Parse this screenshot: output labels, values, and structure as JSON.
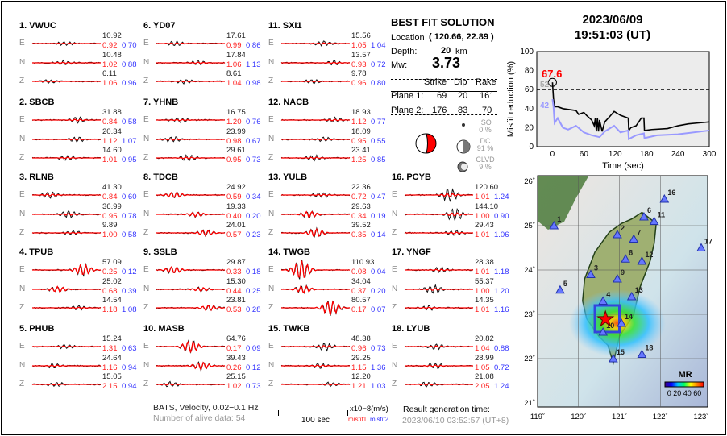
{
  "stations": [
    {
      "label": "1.  VWUC",
      "comps": [
        {
          "c": "E",
          "amp": "10.92",
          "m1": "0.92",
          "m2": "0.70"
        },
        {
          "c": "N",
          "amp": "10.48",
          "m1": "1.02",
          "m2": "0.88"
        },
        {
          "c": "Z",
          "amp": "6.11",
          "m1": "1.06",
          "m2": "0.96"
        }
      ]
    },
    {
      "label": "2.  SBCB",
      "comps": [
        {
          "c": "E",
          "amp": "31.88",
          "m1": "0.84",
          "m2": "0.58"
        },
        {
          "c": "N",
          "amp": "20.34",
          "m1": "1.12",
          "m2": "1.07"
        },
        {
          "c": "Z",
          "amp": "14.60",
          "m1": "1.01",
          "m2": "0.95"
        }
      ]
    },
    {
      "label": "3.  RLNB",
      "comps": [
        {
          "c": "E",
          "amp": "41.30",
          "m1": "0.84",
          "m2": "0.60"
        },
        {
          "c": "N",
          "amp": "36.99",
          "m1": "0.95",
          "m2": "0.78"
        },
        {
          "c": "Z",
          "amp": "9.89",
          "m1": "1.00",
          "m2": "0.58"
        }
      ]
    },
    {
      "label": "4.  TPUB",
      "comps": [
        {
          "c": "E",
          "amp": "57.09",
          "m1": "0.25",
          "m2": "0.12"
        },
        {
          "c": "N",
          "amp": "25.02",
          "m1": "0.68",
          "m2": "0.39"
        },
        {
          "c": "Z",
          "amp": "14.54",
          "m1": "1.18",
          "m2": "1.08"
        }
      ]
    },
    {
      "label": "5.  PHUB",
      "comps": [
        {
          "c": "E",
          "amp": "15.24",
          "m1": "1.31",
          "m2": "0.63"
        },
        {
          "c": "N",
          "amp": "24.64",
          "m1": "1.16",
          "m2": "0.94"
        },
        {
          "c": "Z",
          "amp": "15.05",
          "m1": "2.15",
          "m2": "0.94"
        }
      ]
    },
    {
      "label": "6.  YD07",
      "comps": [
        {
          "c": "E",
          "amp": "17.61",
          "m1": "0.99",
          "m2": "0.86"
        },
        {
          "c": "N",
          "amp": "17.84",
          "m1": "1.06",
          "m2": "1.13"
        },
        {
          "c": "Z",
          "amp": "8.61",
          "m1": "1.04",
          "m2": "0.98"
        }
      ]
    },
    {
      "label": "7.  YHNB",
      "comps": [
        {
          "c": "E",
          "amp": "16.75",
          "m1": "1.20",
          "m2": "0.76"
        },
        {
          "c": "N",
          "amp": "23.99",
          "m1": "0.98",
          "m2": "0.67"
        },
        {
          "c": "Z",
          "amp": "29.61",
          "m1": "0.95",
          "m2": "0.73"
        }
      ]
    },
    {
      "label": "8.  TDCB",
      "comps": [
        {
          "c": "E",
          "amp": "24.92",
          "m1": "0.59",
          "m2": "0.34"
        },
        {
          "c": "N",
          "amp": "19.33",
          "m1": "0.40",
          "m2": "0.20"
        },
        {
          "c": "Z",
          "amp": "24.01",
          "m1": "0.57",
          "m2": "0.23"
        }
      ]
    },
    {
      "label": "9.  SSLB",
      "comps": [
        {
          "c": "E",
          "amp": "29.87",
          "m1": "0.33",
          "m2": "0.18"
        },
        {
          "c": "N",
          "amp": "15.30",
          "m1": "0.44",
          "m2": "0.25"
        },
        {
          "c": "Z",
          "amp": "23.81",
          "m1": "0.53",
          "m2": "0.28"
        }
      ]
    },
    {
      "label": "10. MASB",
      "comps": [
        {
          "c": "E",
          "amp": "64.76",
          "m1": "0.17",
          "m2": "0.09"
        },
        {
          "c": "N",
          "amp": "39.43",
          "m1": "0.26",
          "m2": "0.12"
        },
        {
          "c": "Z",
          "amp": "25.15",
          "m1": "1.02",
          "m2": "0.73"
        }
      ]
    },
    {
      "label": "11. SXI1",
      "comps": [
        {
          "c": "E",
          "amp": "15.56",
          "m1": "1.05",
          "m2": "1.04"
        },
        {
          "c": "N",
          "amp": "13.57",
          "m1": "0.93",
          "m2": "0.72"
        },
        {
          "c": "Z",
          "amp": "9.78",
          "m1": "0.96",
          "m2": "0.80"
        }
      ]
    },
    {
      "label": "12. NACB",
      "comps": [
        {
          "c": "E",
          "amp": "18.93",
          "m1": "1.12",
          "m2": "0.77"
        },
        {
          "c": "N",
          "amp": "18.09",
          "m1": "0.95",
          "m2": "0.55"
        },
        {
          "c": "Z",
          "amp": "23.41",
          "m1": "1.25",
          "m2": "0.85"
        }
      ]
    },
    {
      "label": "13. YULB",
      "comps": [
        {
          "c": "E",
          "amp": "22.36",
          "m1": "0.72",
          "m2": "0.47"
        },
        {
          "c": "N",
          "amp": "29.63",
          "m1": "0.34",
          "m2": "0.19"
        },
        {
          "c": "Z",
          "amp": "39.52",
          "m1": "0.35",
          "m2": "0.14"
        }
      ]
    },
    {
      "label": "14. TWGB",
      "comps": [
        {
          "c": "E",
          "amp": "110.93",
          "m1": "0.08",
          "m2": "0.04"
        },
        {
          "c": "N",
          "amp": "34.04",
          "m1": "0.37",
          "m2": "0.20"
        },
        {
          "c": "Z",
          "amp": "80.57",
          "m1": "0.17",
          "m2": "0.07"
        }
      ]
    },
    {
      "label": "15. TWKB",
      "comps": [
        {
          "c": "E",
          "amp": "48.38",
          "m1": "0.96",
          "m2": "0.73"
        },
        {
          "c": "N",
          "amp": "29.25",
          "m1": "1.15",
          "m2": "1.36"
        },
        {
          "c": "Z",
          "amp": "12.20",
          "m1": "1.21",
          "m2": "1.03"
        }
      ]
    },
    {
      "label": "16. PCYB",
      "comps": [
        {
          "c": "E",
          "amp": "120.60",
          "m1": "1.01",
          "m2": "1.24"
        },
        {
          "c": "N",
          "amp": "144.10",
          "m1": "1.00",
          "m2": "0.90"
        },
        {
          "c": "Z",
          "amp": "29.43",
          "m1": "1.01",
          "m2": "1.06"
        }
      ]
    },
    {
      "label": "17. YNGF",
      "comps": [
        {
          "c": "E",
          "amp": "28.38",
          "m1": "1.01",
          "m2": "1.18"
        },
        {
          "c": "N",
          "amp": "55.37",
          "m1": "1.00",
          "m2": "1.20"
        },
        {
          "c": "Z",
          "amp": "14.35",
          "m1": "1.01",
          "m2": "1.16"
        }
      ]
    },
    {
      "label": "18. LYUB",
      "comps": [
        {
          "c": "E",
          "amp": "20.82",
          "m1": "1.04",
          "m2": "0.88"
        },
        {
          "c": "N",
          "amp": "28.99",
          "m1": "1.05",
          "m2": "0.72"
        },
        {
          "c": "Z",
          "amp": "21.08",
          "m1": "2.05",
          "m2": "1.24"
        }
      ]
    }
  ],
  "footer": {
    "network": "BATS, Velocity, 0.02−0.1 Hz",
    "alive": "Number of alive data: 54",
    "scale": "100 sec",
    "units": "x10−8(m/s)",
    "misfit1": "misfit1",
    "misfit2": "misfit2",
    "gen_label": "Result generation time:",
    "gen_time": "2023/06/10 03:52:57 (UT+8)"
  },
  "solution": {
    "title": "BEST FIT SOLUTION",
    "location_label": "Location",
    "location": "( 120.66,  22.89 )",
    "depth_label": "Depth:",
    "depth": "20",
    "depth_unit": "km",
    "mw_label": "Mw:",
    "mw": "3.73",
    "headers": [
      "Strike",
      "Dip",
      "Rake"
    ],
    "planes": [
      {
        "label": "Plane 1:",
        "strike": "69",
        "dip": "20",
        "rake": "161"
      },
      {
        "label": "Plane 2:",
        "strike": "176",
        "dip": "83",
        "rake": "70"
      }
    ],
    "iso_label": "ISO",
    "iso": "0 %",
    "dc_label": "DC",
    "dc": "91 %",
    "clvd_label": "CLVD",
    "clvd": "9 %"
  },
  "event": {
    "date": "2023/06/09",
    "time": "19:51:03  (UT)"
  },
  "chart_data": {
    "type": "line",
    "xlabel": "Time (sec)",
    "ylabel": "Misfit reduction (%)",
    "xlim": [
      -30,
      300
    ],
    "ylim": [
      0,
      100
    ],
    "xticks": [
      "0",
      "60",
      "120",
      "180",
      "240",
      "300"
    ],
    "yticks": [
      "0",
      "20",
      "40",
      "60",
      "80",
      "100"
    ],
    "threshold": 60,
    "best_label": "67.6",
    "label2": "52",
    "label3": "42",
    "series": [
      {
        "color": "#000000",
        "x": [
          0,
          2,
          4,
          10,
          20,
          45,
          50,
          60,
          65,
          75,
          80,
          82,
          84,
          86,
          88,
          90,
          95,
          100,
          110,
          118,
          130,
          145,
          146,
          150,
          160,
          170,
          175,
          176,
          190,
          220,
          240,
          260,
          280,
          300
        ],
        "y": [
          67.6,
          50,
          42,
          42,
          40,
          38,
          34,
          36,
          33,
          28,
          22,
          30,
          16,
          30,
          16,
          28,
          16,
          26,
          32,
          37,
          33,
          30,
          17,
          20,
          22,
          30,
          30,
          17,
          18,
          19,
          22,
          24,
          25,
          26
        ]
      },
      {
        "color": "#9999ff",
        "x": [
          0,
          2,
          4,
          10,
          20,
          30,
          45,
          60,
          75,
          90,
          100,
          118,
          130,
          145,
          146,
          160,
          175,
          176,
          200,
          240,
          300
        ],
        "y": [
          50,
          42,
          25,
          30,
          20,
          18,
          22,
          15,
          12,
          10,
          16,
          22,
          15,
          17,
          8,
          12,
          14,
          9,
          12,
          13,
          17
        ]
      }
    ]
  },
  "map": {
    "lon_ticks": [
      "119˚",
      "120˚",
      "121˚",
      "122˚",
      "123˚"
    ],
    "lat_ticks": [
      "21˚",
      "22˚",
      "23˚",
      "24˚",
      "25˚",
      "26˚"
    ],
    "colorbar_title": "MR",
    "colorbar_ticks": "0 20 40 60",
    "epicenter": {
      "lon": 120.66,
      "lat": 22.89
    },
    "stations": [
      {
        "n": "1",
        "lon": 119.4,
        "lat": 25.0
      },
      {
        "n": "2",
        "lon": 120.95,
        "lat": 24.8
      },
      {
        "n": "3",
        "lon": 120.3,
        "lat": 23.9
      },
      {
        "n": "4",
        "lon": 120.6,
        "lat": 23.3
      },
      {
        "n": "5",
        "lon": 119.55,
        "lat": 23.55
      },
      {
        "n": "6",
        "lon": 121.6,
        "lat": 25.2
      },
      {
        "n": "7",
        "lon": 121.35,
        "lat": 24.7
      },
      {
        "n": "8",
        "lon": 121.15,
        "lat": 24.25
      },
      {
        "n": "9",
        "lon": 120.95,
        "lat": 23.8
      },
      {
        "n": "10",
        "lon": 120.6,
        "lat": 22.6
      },
      {
        "n": "11",
        "lon": 121.85,
        "lat": 25.1
      },
      {
        "n": "12",
        "lon": 121.55,
        "lat": 24.2
      },
      {
        "n": "13",
        "lon": 121.3,
        "lat": 23.4
      },
      {
        "n": "14",
        "lon": 121.05,
        "lat": 22.8
      },
      {
        "n": "15",
        "lon": 120.85,
        "lat": 22.0
      },
      {
        "n": "16",
        "lon": 122.1,
        "lat": 25.6
      },
      {
        "n": "17",
        "lon": 123.0,
        "lat": 24.5
      },
      {
        "n": "18",
        "lon": 121.55,
        "lat": 22.1
      }
    ]
  }
}
